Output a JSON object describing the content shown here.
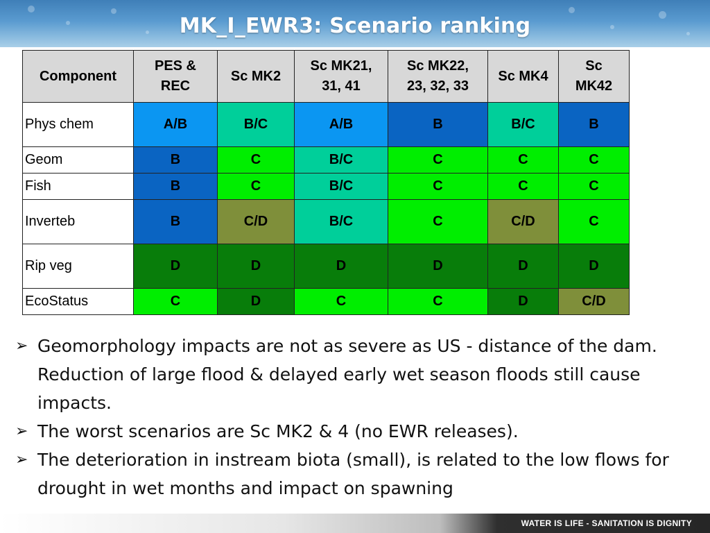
{
  "title": "MK_I_EWR3:  Scenario ranking",
  "colors": {
    "A/B": "#0b96f2",
    "B": "#0a64c2",
    "B/C": "#00cf9a",
    "C": "#00ee00",
    "C/D": "#7f8f3a",
    "D": "#087d0a"
  },
  "table": {
    "headers": [
      [
        "Component"
      ],
      [
        "PES &",
        "REC"
      ],
      [
        "Sc MK2"
      ],
      [
        "Sc MK21,",
        "31, 41"
      ],
      [
        "Sc MK22,",
        "23, 32, 33"
      ],
      [
        "Sc MK4"
      ],
      [
        "Sc",
        "MK42"
      ]
    ],
    "rows": [
      {
        "component": "Phys chem",
        "values": [
          "A/B",
          "B/C",
          "A/B",
          "B",
          "B/C",
          "B"
        ]
      },
      {
        "component": "Geom",
        "values": [
          "B",
          "C",
          "B/C",
          "C",
          "C",
          "C"
        ]
      },
      {
        "component": "Fish",
        "values": [
          "B",
          "C",
          "B/C",
          "C",
          "C",
          "C"
        ]
      },
      {
        "component": "Inverteb",
        "values": [
          "B",
          "C/D",
          "B/C",
          "C",
          "C/D",
          "C"
        ]
      },
      {
        "component": "Rip veg",
        "values": [
          "D",
          "D",
          "D",
          "D",
          "D",
          "D"
        ]
      },
      {
        "component": "EcoStatus",
        "values": [
          "C",
          "D",
          "C",
          "C",
          "D",
          "C/D"
        ]
      }
    ]
  },
  "bullets": [
    "Geomorphology impacts are not as severe as US - distance of the dam. Reduction of large flood & delayed early wet season floods still cause impacts.",
    "The worst scenarios are Sc MK2 & 4 (no EWR releases).",
    "The deterioration in instream biota (small), is related to the low flows for drought in wet months and impact on spawning"
  ],
  "footer": "WATER IS LIFE - SANITATION IS DIGNITY"
}
